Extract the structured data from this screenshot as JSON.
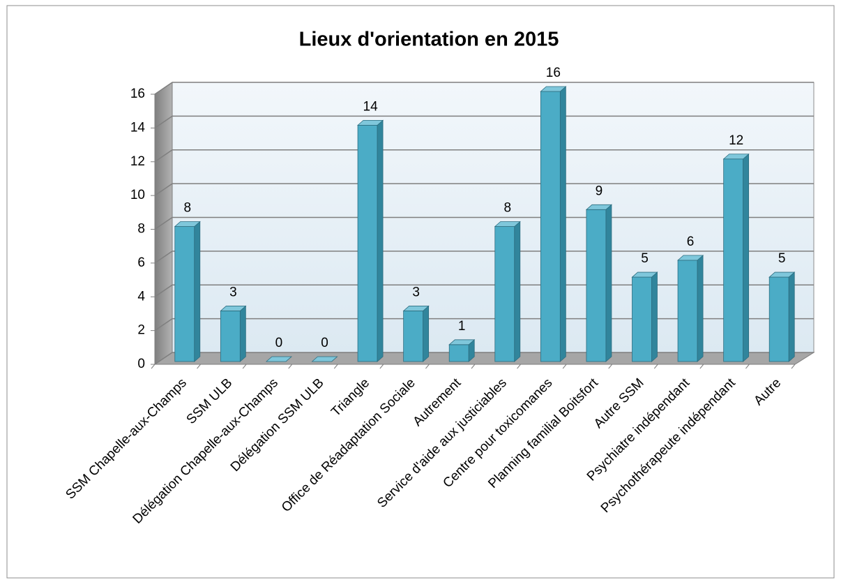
{
  "chart_data": {
    "type": "bar3d",
    "title": "Lieux d'orientation en 2015",
    "categories": [
      "SSM Chapelle-aux-Champs",
      "SSM ULB",
      "Délégation Chapelle-aux-Champs",
      "Délégation SSM ULB",
      "Triangle",
      "Office de Réadaptation Sociale",
      "Autrement",
      "Service d'aide aux justiciables",
      "Centre pour toxicomanes",
      "Planning familial Boitsfort",
      "Autre SSM",
      "Psychiatre indépendant",
      "Psychothérapeute indépendant",
      "Autre"
    ],
    "values": [
      8,
      3,
      0,
      0,
      14,
      3,
      1,
      8,
      16,
      9,
      5,
      6,
      12,
      5
    ],
    "color": "#4bacc6",
    "ylim": [
      0,
      16
    ],
    "yticks": [
      0,
      2,
      4,
      6,
      8,
      10,
      12,
      14,
      16
    ],
    "grid": true
  }
}
